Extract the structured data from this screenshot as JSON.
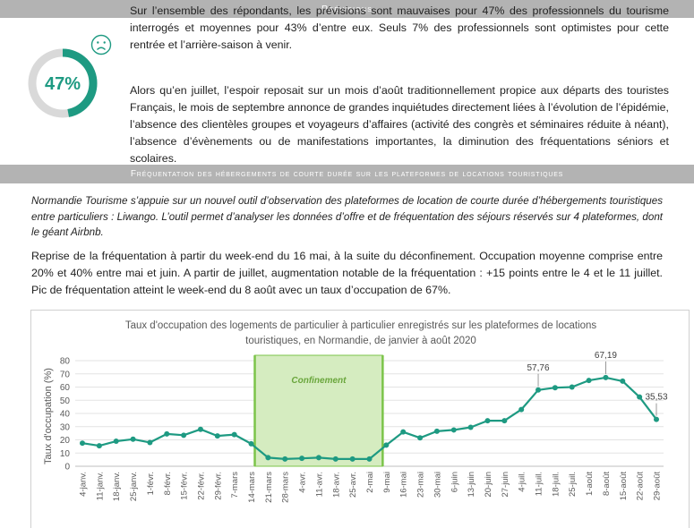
{
  "header": {
    "previsions_title": "Prévisions",
    "frequentation_title": "Fréquentation des hébergements de courte durée sur les plateformes de locations touristiques"
  },
  "kpi": {
    "value": "47%",
    "fraction": 0.47,
    "accent_color": "#1e9a82"
  },
  "text": {
    "paragraph1": "Sur l’ensemble des répondants, les prévisions sont mauvaises pour 47% des professionnels du tourisme interrogés et moyennes pour 43% d’entre eux. Seuls 7% des professionnels sont optimistes pour cette rentrée et l’arrière-saison à venir.",
    "paragraph2": "Alors qu’en juillet, l’espoir reposait sur un mois d’août traditionnellement propice aux départs des touristes Français, le mois de septembre annonce de grandes inquiétudes directement liées à l’évolution de l’épidémie, l’absence des clientèles groupes et voyageurs d’affaires (activité des congrès et séminaires réduite à néant), l’absence d’évènements ou de manifestations importantes, la diminution des fréquentations séniors et scolaires.",
    "paragraph3": "Normandie Tourisme s’appuie sur un nouvel outil d’observation des plateformes de location de courte durée d’hébergements touristiques entre particuliers : Liwango. L’outil permet d’analyser les données d’offre et de fréquentation des séjours réservés sur 4 plateformes, dont le géant Airbnb.",
    "paragraph4": "Reprise de la fréquentation à partir du week-end du 16 mai, à la suite du déconfinement. Occupation moyenne comprise entre 20% et 40% entre mai et juin. A partir de juillet, augmentation notable de la fréquentation : +15 points entre le 4 et le 11 juillet. Pic de fréquentation atteint le week-end du 8 août avec un taux d’occupation de 67%."
  },
  "chart_data": {
    "type": "line",
    "title_line1": "Taux d'occupation des logements de particulier à particulier enregistrés sur les plateformes de locations",
    "title_line2": "touristiques, en Normandie, de janvier à août 2020",
    "ylabel": "Taux d'occupation (%)",
    "xlabel": "",
    "ylim": [
      0,
      80
    ],
    "yticks": [
      "0",
      "10",
      "20",
      "30",
      "40",
      "50",
      "60",
      "70",
      "80"
    ],
    "grid": true,
    "line_color": "#1e9a82",
    "categories": [
      "4-janv.",
      "11-janv.",
      "18-janv.",
      "25-janv.",
      "1-févr.",
      "8-févr.",
      "15-févr.",
      "22-févr.",
      "29-févr.",
      "7-mars",
      "14-mars",
      "21-mars",
      "28-mars",
      "4-avr.",
      "11-avr.",
      "18-avr.",
      "25-avr.",
      "2-mai",
      "9-mai",
      "16-mai",
      "23-mai",
      "30-mai",
      "6-juin",
      "13-juin",
      "20-juin",
      "27-juin",
      "4-juil.",
      "11-juil.",
      "18-juil.",
      "25-juil.",
      "1-août",
      "8-août",
      "15-août",
      "22-août",
      "29-août"
    ],
    "values": [
      17.5,
      15.5,
      19,
      20.5,
      18,
      24.5,
      23.5,
      28,
      23,
      24,
      17,
      6.5,
      5.5,
      6,
      6.5,
      5.5,
      5.5,
      5.5,
      16,
      26,
      21.5,
      26.5,
      27.5,
      29.5,
      34.5,
      34.5,
      43,
      57.76,
      59.5,
      60,
      65,
      67.19,
      64.5,
      52.5,
      35.53
    ],
    "data_labels": [
      {
        "index": 27,
        "text": "57,76"
      },
      {
        "index": 31,
        "text": "67,19"
      },
      {
        "index": 34,
        "text": "35,53"
      }
    ],
    "annotation": {
      "label": "Confinement",
      "from": "14-mars",
      "to": "9-mai",
      "fill_color": "#d5ecc0",
      "border_color": "#7cc44a"
    }
  }
}
